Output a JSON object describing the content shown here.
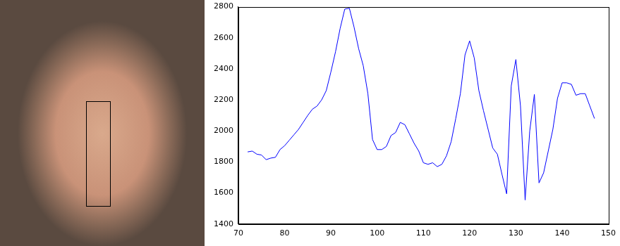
{
  "chart_data": {
    "type": "line",
    "color": "#0000ff",
    "grid": false,
    "x": [
      72,
      73,
      74,
      75,
      76,
      77,
      78,
      79,
      80,
      81,
      82,
      83,
      84,
      85,
      86,
      87,
      88,
      89,
      90,
      91,
      92,
      93,
      94,
      95,
      96,
      97,
      98,
      99,
      100,
      101,
      102,
      103,
      104,
      105,
      106,
      107,
      108,
      109,
      110,
      111,
      112,
      113,
      114,
      115,
      116,
      117,
      118,
      119,
      120,
      121,
      122,
      123,
      124,
      125,
      126,
      127,
      128,
      129,
      130,
      131,
      132,
      133,
      134,
      135,
      136,
      137,
      138,
      139,
      140,
      141,
      142,
      143,
      144,
      145,
      146,
      147
    ],
    "values": [
      1865,
      1870,
      1850,
      1845,
      1815,
      1825,
      1830,
      1880,
      1905,
      1940,
      1975,
      2010,
      2055,
      2100,
      2140,
      2160,
      2200,
      2260,
      2380,
      2510,
      2660,
      2785,
      2790,
      2670,
      2530,
      2420,
      2240,
      1945,
      1880,
      1880,
      1900,
      1970,
      1990,
      2055,
      2040,
      1980,
      1920,
      1870,
      1795,
      1785,
      1795,
      1770,
      1785,
      1840,
      1930,
      2080,
      2240,
      2490,
      2580,
      2470,
      2260,
      2130,
      2010,
      1890,
      1850,
      1720,
      1595,
      2290,
      2460,
      2160,
      1555,
      2000,
      2235,
      1665,
      1730,
      1870,
      2010,
      2210,
      2310,
      2310,
      2300,
      2230,
      2240,
      2240,
      2160,
      2080
    ],
    "xlim": [
      70,
      150
    ],
    "xticks": [
      70,
      80,
      90,
      100,
      110,
      120,
      130,
      140,
      150
    ],
    "ylim": [
      1400,
      2800
    ],
    "yticks": [
      1400,
      1600,
      1800,
      2000,
      2200,
      2400,
      2600,
      2800
    ]
  }
}
